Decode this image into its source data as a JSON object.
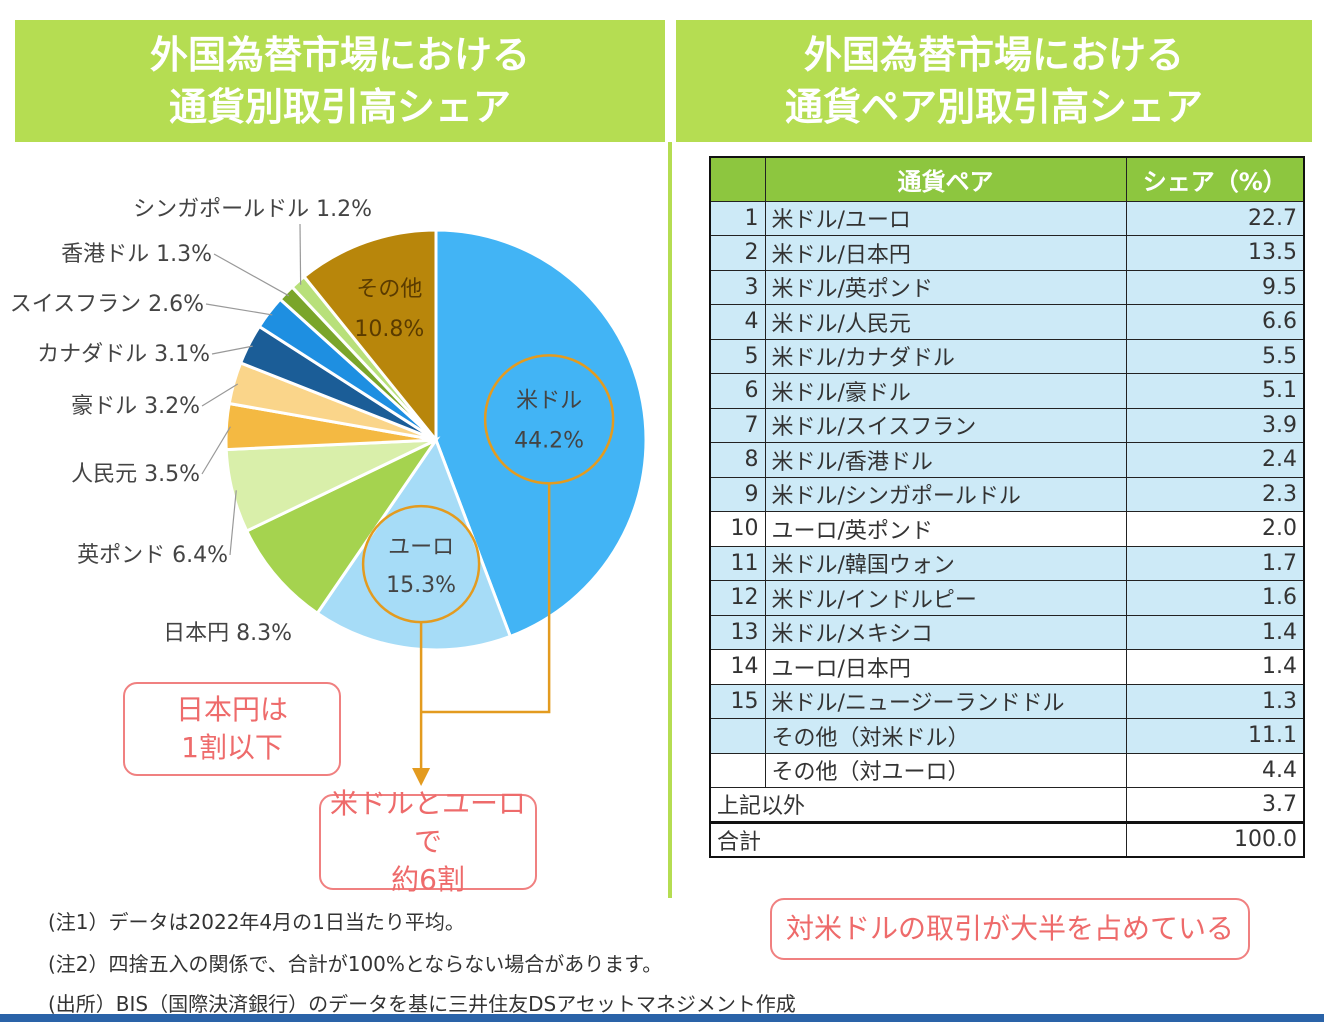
{
  "left_title": "外国為替市場における\n通貨別取引高シェア",
  "right_title": "外国為替市場における\n通貨ペア別取引高シェア",
  "chart_data": [
    {
      "type": "pie",
      "slices": [
        {
          "label": "米ドル",
          "value": 44.2,
          "value_label": "44.2%",
          "color": "#42b4f5"
        },
        {
          "label": "ユーロ",
          "value": 15.3,
          "value_label": "15.3%",
          "color": "#a6dcf7"
        },
        {
          "label": "日本円",
          "value": 8.3,
          "value_label": "8.3%",
          "color": "#a5d34f"
        },
        {
          "label": "英ポンド",
          "value": 6.4,
          "value_label": "6.4%",
          "color": "#d9efaa"
        },
        {
          "label": "人民元",
          "value": 3.5,
          "value_label": "3.5%",
          "color": "#f4b942"
        },
        {
          "label": "豪ドル",
          "value": 3.2,
          "value_label": "3.2%",
          "color": "#fad58a"
        },
        {
          "label": "カナダドル",
          "value": 3.1,
          "value_label": "3.1%",
          "color": "#1b5d97"
        },
        {
          "label": "スイスフラン",
          "value": 2.6,
          "value_label": "2.6%",
          "color": "#1e8fe1"
        },
        {
          "label": "香港ドル",
          "value": 1.3,
          "value_label": "1.3%",
          "color": "#7aa52a"
        },
        {
          "label": "シンガポールドル",
          "value": 1.2,
          "value_label": "1.2%",
          "color": "#b8e07a"
        },
        {
          "label": "その他",
          "value": 10.8,
          "value_label": "10.8%",
          "color": "#b8860b"
        }
      ]
    },
    {
      "type": "table",
      "columns": [
        "通貨ペア",
        "シェア（%）"
      ],
      "rows": [
        {
          "rank": "1",
          "pair": "米ドル/ユーロ",
          "share": "22.7"
        },
        {
          "rank": "2",
          "pair": "米ドル/日本円",
          "share": "13.5"
        },
        {
          "rank": "3",
          "pair": "米ドル/英ポンド",
          "share": "9.5"
        },
        {
          "rank": "4",
          "pair": "米ドル/人民元",
          "share": "6.6"
        },
        {
          "rank": "5",
          "pair": "米ドル/カナダドル",
          "share": "5.5"
        },
        {
          "rank": "6",
          "pair": "米ドル/豪ドル",
          "share": "5.1"
        },
        {
          "rank": "7",
          "pair": "米ドル/スイスフラン",
          "share": "3.9"
        },
        {
          "rank": "8",
          "pair": "米ドル/香港ドル",
          "share": "2.4"
        },
        {
          "rank": "9",
          "pair": "米ドル/シンガポールドル",
          "share": "2.3"
        },
        {
          "rank": "10",
          "pair": "ユーロ/英ポンド",
          "share": "2.0"
        },
        {
          "rank": "11",
          "pair": "米ドル/韓国ウォン",
          "share": "1.7"
        },
        {
          "rank": "12",
          "pair": "米ドル/インドルピー",
          "share": "1.6"
        },
        {
          "rank": "13",
          "pair": "米ドル/メキシコ",
          "share": "1.4"
        },
        {
          "rank": "14",
          "pair": "ユーロ/日本円",
          "share": "1.4"
        },
        {
          "rank": "15",
          "pair": "米ドル/ニュージーランドドル",
          "share": "1.3"
        },
        {
          "rank": "",
          "pair": "その他（対米ドル）",
          "share": "11.1"
        },
        {
          "rank": "",
          "pair": "その他（対ユーロ）",
          "share": "4.4"
        }
      ],
      "other": {
        "label": "上記以外",
        "share": "3.7"
      },
      "total": {
        "label": "合計",
        "share": "100.0"
      }
    }
  ],
  "callouts": {
    "yen": "日本円は\n1割以下",
    "usd_eur": "米ドルとユーロで\n約6割",
    "pairs": "対米ドルの取引が大半を占めている"
  },
  "notes": [
    "(注1）データは2022年4月の1日当たり平均。",
    "(注2）四捨五入の関係で、合計が100%とならない場合があります。",
    "(出所）BIS（国際決済銀行）のデータを基に三井住友DSアセットマネジメント作成"
  ],
  "colors": {
    "banner": "#b5dd52",
    "header": "#8dc63f",
    "row_blue": "#cdeaf7",
    "callout_border": "#f08080",
    "arrow": "#e39b1f",
    "bottom_bar": "#2a63a8"
  }
}
